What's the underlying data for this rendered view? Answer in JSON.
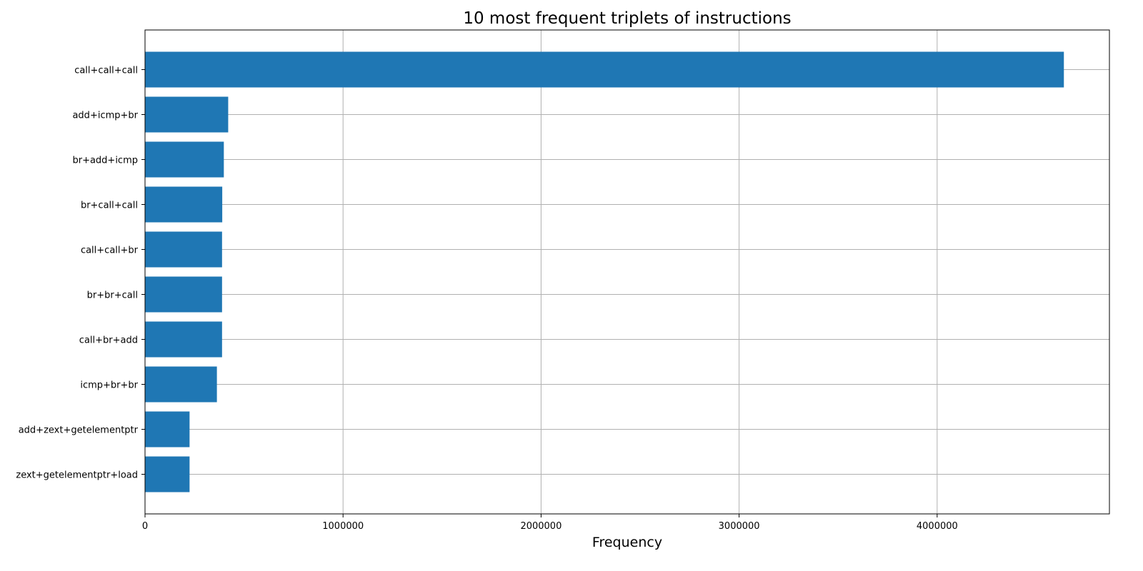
{
  "chart_data": {
    "type": "bar",
    "orientation": "horizontal",
    "title": "10 most frequent triplets of instructions",
    "xlabel": "Frequency",
    "ylabel": "",
    "categories": [
      "call+call+call",
      "add+icmp+br",
      "br+add+icmp",
      "br+call+call",
      "call+call+br",
      "br+br+call",
      "call+br+add",
      "icmp+br+br",
      "add+zext+getelementptr",
      "zext+getelementptr+load"
    ],
    "values": [
      4640000,
      420000,
      398000,
      390000,
      389000,
      389000,
      389000,
      363000,
      225000,
      225000
    ],
    "xlim": [
      0,
      4870000
    ],
    "xticks": [
      0,
      1000000,
      2000000,
      3000000,
      4000000
    ],
    "xtick_labels": [
      "0",
      "1000000",
      "2000000",
      "3000000",
      "4000000"
    ],
    "grid": true,
    "bar_color": "#1f77b4",
    "grid_color": "#b0b0b0"
  }
}
